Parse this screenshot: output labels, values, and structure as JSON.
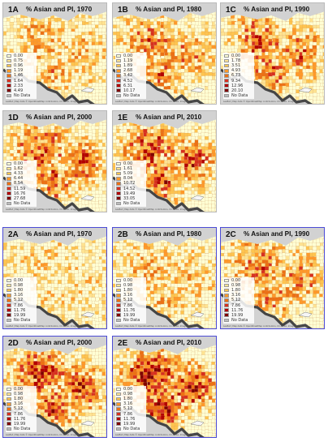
{
  "attribution": "Leaflet | Map data © OpenStreetMap contributors, CC-BY-SA, Imagery © Mapbox",
  "colors": {
    "ramp": [
      "#ffffd4",
      "#fee391",
      "#fec44f",
      "#fe9929",
      "#ec7014",
      "#d7301f",
      "#b30000",
      "#7f0000"
    ],
    "nodata": "#bbbbbb",
    "ocean": "#d2d2d2",
    "group2_border": "#4b4bd6"
  },
  "panels": [
    {
      "id": "1A",
      "title": "% Asian and PI, 1970",
      "legend": [
        "0.00",
        "0.75",
        "0.96",
        "1.19",
        "1.46",
        "1.64",
        "2.33",
        "4.49",
        "No Data"
      ],
      "intensity": 0.28
    },
    {
      "id": "1B",
      "title": "% Asian and PI, 1980",
      "legend": [
        "0.00",
        "1.19",
        "1.89",
        "2.68",
        "3.42",
        "4.52",
        "6.31",
        "10.17",
        "No Data"
      ],
      "intensity": 0.42
    },
    {
      "id": "1C",
      "title": "% Asian and PI, 1990",
      "legend": [
        "0.00",
        "1.78",
        "3.51",
        "4.93",
        "6.73",
        "9.34",
        "12.96",
        "20.10",
        "No Data"
      ],
      "intensity": 0.5
    },
    {
      "id": "1D",
      "title": "% Asian and PI, 2000",
      "legend": [
        "0.00",
        "1.62",
        "4.33",
        "6.44",
        "8.54",
        "11.59",
        "16.76",
        "27.68",
        "No Data"
      ],
      "intensity": 0.52
    },
    {
      "id": "1E",
      "title": "% Asian and PI, 2010",
      "legend": [
        "0.00",
        "1.61",
        "5.09",
        "8.04",
        "10.72",
        "14.52",
        "19.49",
        "33.05",
        "No Data"
      ],
      "intensity": 0.55
    },
    {
      "id": "2A",
      "title": "% Asian and PI, 1970",
      "legend": [
        "0.00",
        "0.98",
        "1.80",
        "3.16",
        "5.12",
        "7.86",
        "11.76",
        "19.99",
        "No Data"
      ],
      "intensity": 0.1
    },
    {
      "id": "2B",
      "title": "% Asian and PI, 1980",
      "legend": [
        "0.00",
        "0.98",
        "1.80",
        "3.16",
        "5.12",
        "7.86",
        "11.76",
        "19.99",
        "No Data"
      ],
      "intensity": 0.26
    },
    {
      "id": "2C",
      "title": "% Asian and PI, 1990",
      "legend": [
        "0.00",
        "0.98",
        "1.80",
        "3.16",
        "5.12",
        "7.86",
        "11.76",
        "19.99",
        "No Data"
      ],
      "intensity": 0.44
    },
    {
      "id": "2D",
      "title": "% Asian and PI, 2000",
      "legend": [
        "0.00",
        "0.98",
        "1.80",
        "3.16",
        "5.12",
        "7.86",
        "11.76",
        "19.99",
        "No Data"
      ],
      "intensity": 0.58
    },
    {
      "id": "2E",
      "title": "% Asian and PI, 2010",
      "legend": [
        "0.00",
        "0.98",
        "1.80",
        "3.16",
        "5.12",
        "7.86",
        "11.76",
        "19.99",
        "No Data"
      ],
      "intensity": 0.7
    }
  ]
}
